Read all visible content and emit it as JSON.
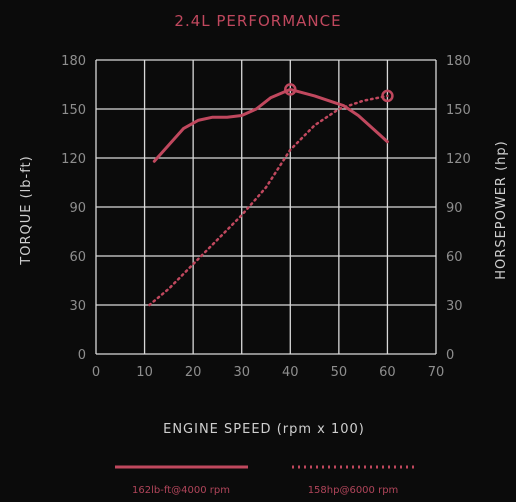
{
  "chart_data": {
    "type": "line",
    "title": "2.4L PERFORMANCE",
    "xlabel": "ENGINE SPEED (rpm x 100)",
    "ylabel_left": "TORQUE (lb-ft)",
    "ylabel_right": "HORSEPOWER (hp)",
    "xlim": [
      0,
      70
    ],
    "ylim": [
      0,
      180
    ],
    "x_ticks": [
      "0",
      "10",
      "20",
      "30",
      "40",
      "50",
      "60",
      "70"
    ],
    "y_ticks": [
      "0",
      "30",
      "60",
      "90",
      "120",
      "150",
      "180"
    ],
    "grid": true,
    "legend_position": "bottom",
    "color": "#c0485e",
    "series": [
      {
        "name": "162lb-ft@4000 rpm",
        "style": "solid",
        "axis": "left",
        "x": [
          12,
          15,
          18,
          21,
          24,
          27,
          30,
          33,
          36,
          40,
          45,
          48,
          51,
          54,
          57,
          60
        ],
        "y": [
          118,
          128,
          138,
          143,
          145,
          145,
          146,
          150,
          157,
          162,
          158,
          155,
          152,
          146,
          138,
          130
        ],
        "peak": {
          "x": 40,
          "y": 162
        }
      },
      {
        "name": "158hp@6000 rpm",
        "style": "dotted",
        "axis": "right",
        "x": [
          11,
          15,
          20,
          25,
          30,
          35,
          40,
          45,
          50,
          55,
          60
        ],
        "y": [
          30,
          40,
          55,
          70,
          85,
          102,
          125,
          140,
          150,
          155,
          158
        ],
        "peak": {
          "x": 60,
          "y": 158
        }
      }
    ]
  }
}
